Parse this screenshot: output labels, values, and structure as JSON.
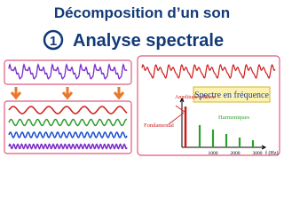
{
  "header": {
    "line1": "Décomposition d’un son",
    "number": "1",
    "line2": "Analyse spectrale"
  },
  "spectrum": {
    "title": "Spectre en fréquence",
    "y_label": "Amplitude relative",
    "fundamental": "Fondamental",
    "harmonics": "Harmoniques",
    "x_ticks": [
      "1000",
      "2000",
      "3000"
    ],
    "x_label": "f (Hz)"
  }
}
